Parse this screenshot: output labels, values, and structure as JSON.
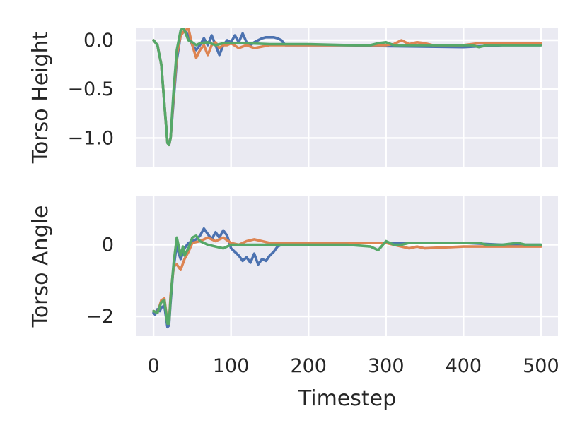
{
  "chart_data": {
    "type": "line",
    "xlabel": "Timestep",
    "x_ticks": [
      0,
      100,
      200,
      300,
      400,
      500
    ],
    "x_tick_labels": [
      "0",
      "100",
      "200",
      "300",
      "400",
      "500"
    ],
    "xlim": [
      -22,
      522
    ],
    "grid": true,
    "legend": "none",
    "colors": [
      "#4c72b0",
      "#dd8452",
      "#55a868"
    ],
    "panels": [
      {
        "ylabel": "Torso Height",
        "ylim": [
          -1.3,
          0.13
        ],
        "y_ticks": [
          0.0,
          -0.5,
          -1.0
        ],
        "y_tick_labels": [
          "0.0",
          "−0.5",
          "−1.0"
        ],
        "series": [
          {
            "x": [
              0,
              5,
              10,
              14,
              18,
              20,
              22,
              26,
              30,
              35,
              40,
              45,
              50,
              55,
              60,
              65,
              70,
              75,
              80,
              85,
              90,
              95,
              100,
              105,
              110,
              115,
              120,
              125,
              130,
              135,
              140,
              145,
              150,
              155,
              160,
              165,
              170,
              180,
              200,
              250,
              300,
              400,
              450,
              500
            ],
            "y": [
              0.0,
              -0.05,
              -0.25,
              -0.65,
              -1.05,
              -1.07,
              -1.0,
              -0.6,
              -0.2,
              0.05,
              0.1,
              0.05,
              -0.05,
              -0.1,
              -0.05,
              0.02,
              -0.05,
              0.05,
              -0.05,
              -0.15,
              -0.05,
              0.0,
              -0.02,
              0.05,
              -0.02,
              0.07,
              -0.02,
              -0.05,
              -0.02,
              0.0,
              0.02,
              0.03,
              0.03,
              0.03,
              0.02,
              0.0,
              -0.05,
              -0.05,
              -0.05,
              -0.05,
              -0.06,
              -0.07,
              -0.05,
              -0.05
            ]
          },
          {
            "x": [
              0,
              5,
              10,
              14,
              18,
              20,
              22,
              26,
              30,
              35,
              40,
              45,
              50,
              55,
              60,
              65,
              70,
              75,
              80,
              85,
              90,
              95,
              100,
              110,
              120,
              130,
              150,
              200,
              250,
              300,
              310,
              320,
              330,
              340,
              350,
              360,
              400,
              420,
              450,
              500
            ],
            "y": [
              0.0,
              -0.05,
              -0.25,
              -0.65,
              -1.05,
              -1.07,
              -1.0,
              -0.55,
              -0.15,
              0.05,
              0.1,
              0.12,
              -0.05,
              -0.18,
              -0.1,
              -0.05,
              -0.15,
              -0.05,
              -0.02,
              -0.08,
              -0.05,
              -0.05,
              -0.03,
              -0.08,
              -0.05,
              -0.08,
              -0.05,
              -0.05,
              -0.05,
              -0.05,
              -0.04,
              0.0,
              -0.04,
              -0.02,
              -0.03,
              -0.05,
              -0.05,
              -0.03,
              -0.03,
              -0.03
            ]
          },
          {
            "x": [
              0,
              5,
              10,
              14,
              18,
              20,
              22,
              26,
              30,
              35,
              38,
              40,
              45,
              50,
              55,
              60,
              70,
              80,
              90,
              100,
              120,
              150,
              200,
              250,
              280,
              290,
              300,
              310,
              320,
              400,
              410,
              420,
              430,
              450,
              480,
              500
            ],
            "y": [
              0.0,
              -0.05,
              -0.25,
              -0.65,
              -1.05,
              -1.07,
              -1.0,
              -0.5,
              -0.1,
              0.1,
              0.13,
              0.1,
              0.0,
              -0.02,
              -0.05,
              -0.03,
              -0.02,
              -0.05,
              -0.03,
              -0.03,
              -0.03,
              -0.04,
              -0.04,
              -0.05,
              -0.05,
              -0.03,
              -0.02,
              -0.05,
              -0.05,
              -0.05,
              -0.05,
              -0.07,
              -0.05,
              -0.05,
              -0.05,
              -0.05
            ]
          }
        ]
      },
      {
        "ylabel": "Torso Angle",
        "ylim": [
          -2.55,
          1.35
        ],
        "y_ticks": [
          0,
          -2
        ],
        "y_tick_labels": [
          "0",
          "−2"
        ],
        "series": [
          {
            "x": [
              0,
              2,
              5,
              8,
              10,
              14,
              18,
              20,
              22,
              25,
              28,
              30,
              32,
              35,
              40,
              45,
              50,
              55,
              60,
              65,
              70,
              75,
              80,
              85,
              90,
              95,
              100,
              105,
              110,
              115,
              120,
              125,
              130,
              135,
              140,
              145,
              150,
              155,
              160,
              165,
              170,
              180,
              200,
              250,
              300,
              350,
              400,
              450,
              500
            ],
            "y": [
              -1.9,
              -1.95,
              -1.8,
              -1.85,
              -1.75,
              -1.7,
              -2.3,
              -2.25,
              -1.6,
              -0.8,
              -0.3,
              0.0,
              -0.2,
              -0.4,
              -0.1,
              0.05,
              0.1,
              0.15,
              0.25,
              0.45,
              0.3,
              0.15,
              0.35,
              0.2,
              0.4,
              0.25,
              -0.1,
              -0.2,
              -0.3,
              -0.45,
              -0.35,
              -0.5,
              -0.25,
              -0.55,
              -0.4,
              -0.45,
              -0.3,
              -0.2,
              -0.05,
              0.0,
              0.05,
              0.05,
              0.05,
              0.05,
              0.05,
              0.05,
              0.05,
              0.0,
              0.0
            ]
          },
          {
            "x": [
              0,
              5,
              10,
              14,
              18,
              20,
              22,
              26,
              30,
              35,
              40,
              45,
              50,
              60,
              70,
              80,
              90,
              100,
              110,
              120,
              130,
              150,
              200,
              250,
              300,
              320,
              330,
              340,
              350,
              400,
              420,
              450,
              500
            ],
            "y": [
              -1.85,
              -1.9,
              -1.55,
              -1.5,
              -2.15,
              -2.2,
              -1.4,
              -0.6,
              -0.55,
              -0.7,
              -0.4,
              -0.2,
              0.05,
              0.1,
              0.2,
              0.1,
              0.2,
              0.05,
              0.0,
              0.1,
              0.15,
              0.05,
              0.05,
              0.05,
              0.05,
              -0.05,
              -0.1,
              -0.05,
              -0.1,
              -0.05,
              -0.05,
              -0.05,
              -0.05
            ]
          },
          {
            "x": [
              0,
              5,
              10,
              14,
              18,
              20,
              22,
              26,
              30,
              35,
              38,
              40,
              45,
              50,
              55,
              60,
              70,
              80,
              90,
              100,
              120,
              150,
              200,
              250,
              280,
              290,
              300,
              310,
              320,
              330,
              400,
              420,
              430,
              450,
              470,
              480,
              500
            ],
            "y": [
              -1.85,
              -1.9,
              -1.6,
              -1.55,
              -2.2,
              -2.2,
              -1.5,
              -0.5,
              0.2,
              -0.3,
              -0.05,
              -0.3,
              -0.1,
              0.2,
              0.25,
              0.1,
              0.0,
              -0.05,
              -0.1,
              0.0,
              0.0,
              0.0,
              0.0,
              0.0,
              -0.05,
              -0.15,
              0.1,
              0.0,
              0.0,
              0.05,
              0.05,
              0.05,
              0.0,
              0.0,
              0.05,
              0.0,
              0.0
            ]
          }
        ]
      }
    ]
  }
}
